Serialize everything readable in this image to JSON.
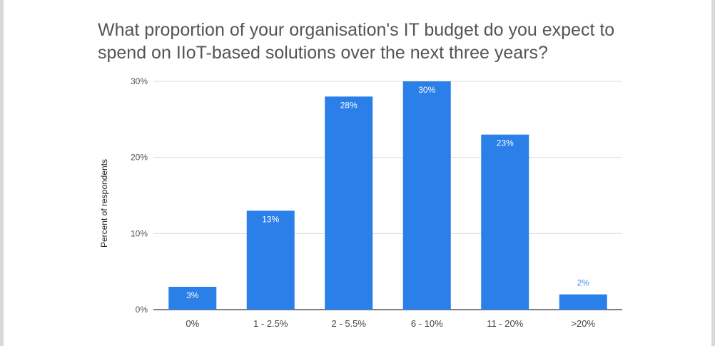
{
  "chart_data": {
    "type": "bar",
    "title": "What proportion of your organisation's IT budget do you expect to spend on IIoT-based solutions over the next three years?",
    "xlabel": "",
    "ylabel": "Percent of respondents",
    "ylim": [
      0,
      30
    ],
    "yticks": [
      "0%",
      "10%",
      "20%",
      "30%"
    ],
    "categories": [
      "0%",
      "1 - 2.5%",
      "2 - 5.5%",
      "6 - 10%",
      "11 - 20%",
      ">20%"
    ],
    "values": [
      3,
      13,
      28,
      30,
      23,
      2
    ],
    "data_labels": [
      "3%",
      "13%",
      "28%",
      "30%",
      "23%",
      "2%"
    ],
    "grid": true,
    "legend": "none",
    "bar_color": "#2a7fe8",
    "label_color_inside": "#ffffff",
    "label_color_outside": "#4a90e2"
  }
}
